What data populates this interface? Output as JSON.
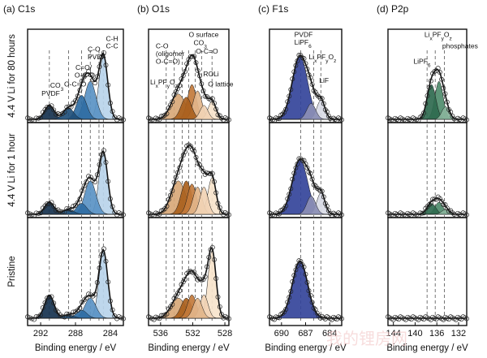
{
  "rows": [
    {
      "id": "r80",
      "label": "4.4 V Li for 80 hours"
    },
    {
      "id": "r1",
      "label": "4.4 V Li for 1 hour"
    },
    {
      "id": "p",
      "label": "Pristine"
    }
  ],
  "watermark": "我的锂房网",
  "chart_data": [
    {
      "type": "area",
      "title": "(a) C1s",
      "xlabel": "Binding energy / eV",
      "x_reversed": true,
      "xlim": [
        293.5,
        282.5
      ],
      "xticks": [
        292,
        288,
        284
      ],
      "dashed_guides": [
        291,
        288.8,
        287.3,
        286.3,
        285.3,
        284.8
      ],
      "components": [
        {
          "name": "PVDF",
          "center": 291.0,
          "width": 0.55,
          "color": "#16324f"
        },
        {
          "name": "O-C=O",
          "center": 288.8,
          "width": 0.6,
          "color": "#1f4f7a"
        },
        {
          "name": "C=O/O-C-O",
          "center": 287.3,
          "width": 0.6,
          "color": "#2f6da3"
        },
        {
          "name": "C-O / PVDF",
          "center": 286.3,
          "width": 0.65,
          "color": "#5a93c4"
        },
        {
          "name": "C-H C-C",
          "center": 284.8,
          "width": 0.5,
          "color": "#b9d4ea"
        }
      ],
      "series": [
        {
          "row": "r80",
          "amps": [
            0.22,
            0.18,
            0.38,
            0.6,
            1.0
          ]
        },
        {
          "row": "r1",
          "amps": [
            0.2,
            0.08,
            0.18,
            0.55,
            1.0
          ]
        },
        {
          "row": "p",
          "amps": [
            0.34,
            0.05,
            0.12,
            0.3,
            1.0
          ]
        }
      ],
      "annotations": [
        {
          "text": "PVDF",
          "row": "r80",
          "x": 291.9,
          "y": 0.37
        },
        {
          "text": "CO3",
          "row": "r80",
          "x": 290.9,
          "y": 0.5
        },
        {
          "text": "O-C=O",
          "row": "r80",
          "x": 289.3,
          "y": 0.52
        },
        {
          "text": "C=O/",
          "row": "r80",
          "x": 288.0,
          "y": 0.78
        },
        {
          "text": "O-C-O",
          "row": "r80",
          "x": 288.1,
          "y": 0.66
        },
        {
          "text": "C-O",
          "row": "r80",
          "x": 286.6,
          "y": 1.07
        },
        {
          "text": "PVDF",
          "row": "r80",
          "x": 286.6,
          "y": 0.95
        },
        {
          "text": "C-H",
          "row": "r80",
          "x": 284.5,
          "y": 1.24
        },
        {
          "text": "C-C",
          "row": "r80",
          "x": 284.5,
          "y": 1.12
        }
      ]
    },
    {
      "type": "area",
      "title": "(b) O1s",
      "xlabel": "Binding energy / eV",
      "x_reversed": true,
      "xlim": [
        537.5,
        527.5
      ],
      "xticks": [
        536,
        532,
        528
      ],
      "dashed_guides": [
        535.3,
        534.3,
        533.3,
        532.5,
        531.7,
        530.9,
        529.6
      ],
      "components": [
        {
          "name": "LixPFyOz",
          "center": 533.8,
          "width": 0.9,
          "color": "#d8a878"
        },
        {
          "name": "C-O (oligomer, O-C=O)",
          "center": 532.8,
          "width": 0.65,
          "color": "#a9601d"
        },
        {
          "name": "O surface / CO3",
          "center": 532.1,
          "width": 0.55,
          "color": "#c27a3b"
        },
        {
          "name": "O-C=O",
          "center": 531.4,
          "width": 0.55,
          "color": "#e2b58a"
        },
        {
          "name": "ROLi",
          "center": 530.6,
          "width": 0.5,
          "color": "#f1d3b4"
        },
        {
          "name": "O lattice",
          "center": 529.6,
          "width": 0.5,
          "color": "#f7e4cc"
        }
      ],
      "series": [
        {
          "row": "r80",
          "amps": [
            0.4,
            0.35,
            0.55,
            0.45,
            0.22,
            0.28
          ]
        },
        {
          "row": "r1",
          "amps": [
            0.55,
            0.55,
            0.5,
            0.45,
            0.45,
            0.6
          ]
        },
        {
          "row": "p",
          "amps": [
            0.3,
            0.3,
            0.35,
            0.3,
            0.35,
            1.0
          ]
        }
      ],
      "annotations": [
        {
          "text": "C-O",
          "row": "r80",
          "x": 536.6,
          "y": 1.12
        },
        {
          "text": "(oligomer",
          "row": "r80",
          "x": 536.6,
          "y": 1.0
        },
        {
          "text": "O-C=O)",
          "row": "r80",
          "x": 536.6,
          "y": 0.88
        },
        {
          "text": "LixPFyOz",
          "row": "r80",
          "x": 537.3,
          "y": 0.55
        },
        {
          "text": "O surface",
          "row": "r80",
          "x": 532.5,
          "y": 1.3
        },
        {
          "text": "CO3",
          "row": "r80",
          "x": 531.9,
          "y": 1.17
        },
        {
          "text": "O-C=O",
          "row": "r80",
          "x": 531.6,
          "y": 1.04
        },
        {
          "text": "ROLi",
          "row": "r80",
          "x": 530.7,
          "y": 0.68
        },
        {
          "text": "O lattice",
          "row": "r80",
          "x": 530.1,
          "y": 0.52
        }
      ]
    },
    {
      "type": "area",
      "title": "(c) F1s",
      "xlabel": "Binding energy / eV",
      "x_reversed": true,
      "xlim": [
        691.5,
        682.5
      ],
      "xticks": [
        690,
        687,
        684
      ],
      "dashed_guides": [
        687.6,
        686.0,
        685.1
      ],
      "components": [
        {
          "name": "PVDF / LiPF6",
          "center": 687.7,
          "width": 0.95,
          "color": "#34449a"
        },
        {
          "name": "LixPFyOz",
          "center": 686.3,
          "width": 0.55,
          "color": "#8c8fb5"
        },
        {
          "name": "LiF",
          "center": 685.1,
          "width": 0.5,
          "color": "#d9dbe6"
        }
      ],
      "series": [
        {
          "row": "r80",
          "amps": [
            1.0,
            0.25,
            0.3
          ]
        },
        {
          "row": "r1",
          "amps": [
            0.9,
            0.3,
            0.35
          ]
        },
        {
          "row": "p",
          "amps": [
            0.85,
            0.0,
            0.0
          ]
        }
      ],
      "annotations": [
        {
          "text": "PVDF",
          "row": "r80",
          "x": 688.4,
          "y": 1.3
        },
        {
          "text": "LiPF6",
          "row": "r80",
          "x": 688.4,
          "y": 1.18
        },
        {
          "text": "LixPFyOz",
          "row": "r80",
          "x": 686.6,
          "y": 0.95
        },
        {
          "text": "LiF",
          "row": "r80",
          "x": 685.3,
          "y": 0.58
        }
      ]
    },
    {
      "type": "area",
      "title": "(d) P2p",
      "xlabel": "Binding energy / eV",
      "x_reversed": true,
      "xlim": [
        145,
        130.5
      ],
      "xticks": [
        144,
        140,
        136,
        132
      ],
      "dashed_guides": [
        137.8,
        136.3,
        134.6
      ],
      "components": [
        {
          "name": "LiPF6",
          "center": 137.0,
          "width": 0.8,
          "color": "#2f6a4f"
        },
        {
          "name": "LixPFyOz",
          "center": 135.6,
          "width": 0.75,
          "color": "#4f8c6d"
        },
        {
          "name": "phosphates",
          "center": 134.4,
          "width": 0.7,
          "color": "#89b49c"
        }
      ],
      "series": [
        {
          "row": "r80",
          "amps": [
            0.55,
            0.6,
            0.2
          ]
        },
        {
          "row": "r1",
          "amps": [
            0.18,
            0.2,
            0.08
          ]
        },
        {
          "row": "p",
          "amps": [
            0.0,
            0.0,
            0.0
          ]
        }
      ],
      "annotations": [
        {
          "text": "LixPFyOz",
          "row": "r80",
          "x": 138.3,
          "y": 1.3
        },
        {
          "text": "phosphates",
          "row": "r80",
          "x": 135.0,
          "y": 1.12
        },
        {
          "text": "LiPF6",
          "row": "r80",
          "x": 140.3,
          "y": 0.88
        }
      ]
    }
  ]
}
